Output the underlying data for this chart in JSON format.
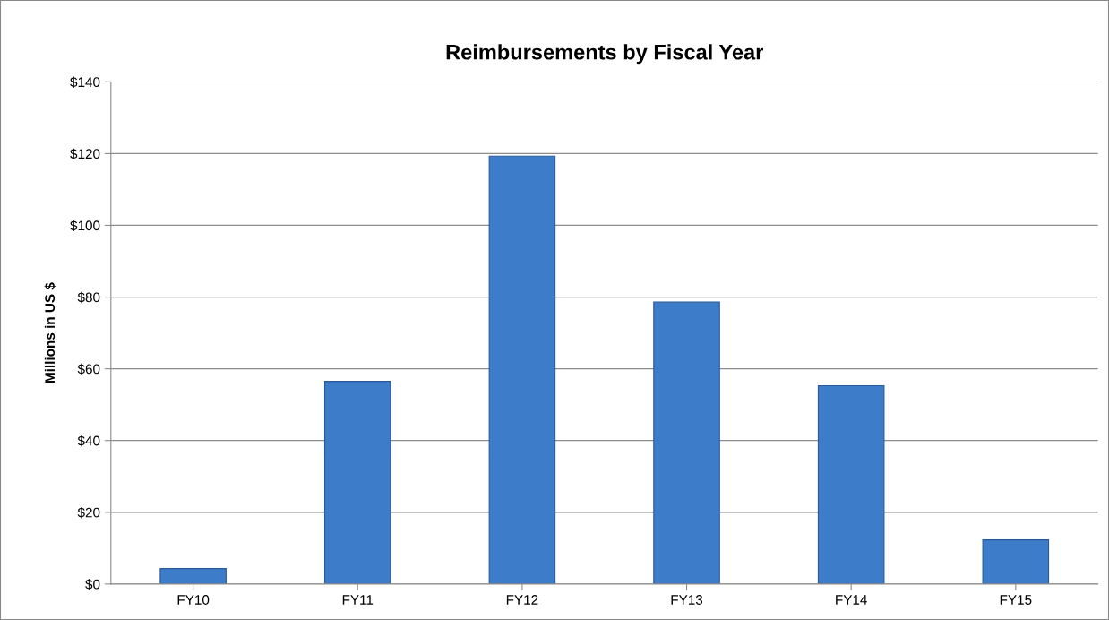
{
  "chart_data": {
    "type": "bar",
    "title": "Reimbursements by Fiscal Year",
    "ylabel": "Millions in US $",
    "categories": [
      "FY10",
      "FY11",
      "FY12",
      "FY13",
      "FY14",
      "FY15"
    ],
    "values": [
      4.3,
      56.5,
      119.3,
      78.6,
      55.3,
      12.3
    ],
    "color": "#3d7cc9",
    "ylim": [
      0,
      140
    ],
    "yticks": [
      {
        "value": 0,
        "label": "$0"
      },
      {
        "value": 20,
        "label": "$20"
      },
      {
        "value": 40,
        "label": "$40"
      },
      {
        "value": 60,
        "label": "$60"
      },
      {
        "value": 80,
        "label": "$80"
      },
      {
        "value": 100,
        "label": "$100"
      },
      {
        "value": 120,
        "label": "$120"
      },
      {
        "value": 140,
        "label": "$140"
      }
    ],
    "grid": "y",
    "legend": false
  }
}
